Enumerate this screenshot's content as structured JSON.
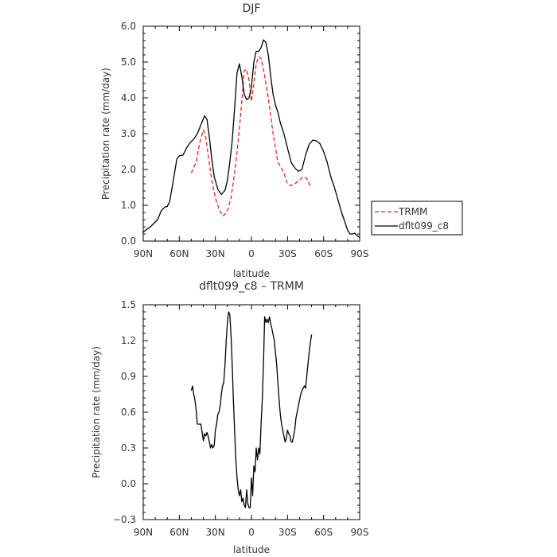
{
  "colors": {
    "trmm": "#e8231e",
    "model": "#000000"
  },
  "chart_data": [
    {
      "type": "line",
      "title": "DJF",
      "xlabel": "latitude",
      "ylabel": "Precipitation rate (mm/day)",
      "xlim": [
        90,
        -90
      ],
      "ylim": [
        0,
        6
      ],
      "xticks": [
        90,
        60,
        30,
        0,
        -30,
        -60,
        -90
      ],
      "xtick_labels": [
        "90N",
        "60N",
        "30N",
        "0",
        "30S",
        "60S",
        "90S"
      ],
      "yticks": [
        0,
        1,
        2,
        3,
        4,
        5,
        6
      ],
      "ytick_labels": [
        "0.0",
        "1.0",
        "2.0",
        "3.0",
        "4.0",
        "5.0",
        "6.0"
      ],
      "grid": false,
      "legend": "right",
      "series": [
        {
          "name": "TRMM",
          "style": "dashed",
          "x": [
            50,
            46,
            43,
            40,
            38,
            36,
            33,
            30,
            27,
            24,
            22,
            20,
            17,
            14,
            11,
            8,
            6,
            4,
            2,
            0,
            -2,
            -4,
            -6,
            -8,
            -10,
            -12,
            -14,
            -16,
            -18,
            -20,
            -22,
            -24,
            -27,
            -30,
            -33,
            -36,
            -40,
            -43,
            -46,
            -48,
            -50
          ],
          "y": [
            1.9,
            2.2,
            2.75,
            3.1,
            2.9,
            2.4,
            1.7,
            1.2,
            0.9,
            0.7,
            0.75,
            0.85,
            1.2,
            1.9,
            2.8,
            3.9,
            4.75,
            4.8,
            4.5,
            3.9,
            4.4,
            4.95,
            5.15,
            5.1,
            4.8,
            4.4,
            4.0,
            3.5,
            3.0,
            2.6,
            2.2,
            2.1,
            1.9,
            1.6,
            1.55,
            1.6,
            1.7,
            1.8,
            1.75,
            1.6,
            1.5
          ]
        },
        {
          "name": "dflt099_c8",
          "style": "solid",
          "x": [
            90,
            87,
            84,
            81,
            78,
            75,
            72,
            70,
            68,
            66,
            64,
            62,
            60,
            57,
            54,
            51,
            48,
            45,
            42,
            39,
            37,
            35,
            33,
            31,
            28,
            25,
            22,
            20,
            18,
            16,
            14,
            12,
            10,
            8,
            6,
            4,
            2,
            0,
            -2,
            -4,
            -6,
            -8,
            -10,
            -12,
            -14,
            -16,
            -18,
            -20,
            -22,
            -24,
            -27,
            -30,
            -33,
            -36,
            -39,
            -42,
            -45,
            -48,
            -51,
            -54,
            -57,
            -60,
            -63,
            -66,
            -69,
            -72,
            -75,
            -78,
            -80,
            -82,
            -84,
            -86,
            -88,
            -90
          ],
          "y": [
            0.25,
            0.33,
            0.4,
            0.5,
            0.6,
            0.85,
            0.95,
            0.97,
            1.1,
            1.5,
            1.9,
            2.3,
            2.38,
            2.4,
            2.6,
            2.75,
            2.85,
            3.0,
            3.25,
            3.5,
            3.4,
            2.9,
            2.3,
            1.8,
            1.45,
            1.3,
            1.42,
            1.7,
            2.2,
            2.8,
            3.7,
            4.7,
            4.95,
            4.6,
            4.1,
            3.95,
            4.0,
            4.3,
            5.0,
            5.3,
            5.3,
            5.4,
            5.62,
            5.55,
            5.2,
            4.6,
            4.1,
            3.8,
            3.6,
            3.3,
            3.0,
            2.6,
            2.2,
            2.05,
            1.95,
            2.0,
            2.4,
            2.7,
            2.82,
            2.8,
            2.72,
            2.5,
            2.2,
            1.8,
            1.5,
            1.15,
            0.8,
            0.5,
            0.3,
            0.2,
            0.2,
            0.22,
            0.15,
            0.1
          ]
        }
      ]
    },
    {
      "type": "line",
      "title": "dflt099_c8 – TRMM",
      "xlabel": "latitude",
      "ylabel": "Precipitation rate (mm/day)",
      "xlim": [
        90,
        -90
      ],
      "ylim": [
        -0.3,
        1.5
      ],
      "xticks": [
        90,
        60,
        30,
        0,
        -30,
        -60,
        -90
      ],
      "xtick_labels": [
        "90N",
        "60N",
        "30N",
        "0",
        "30S",
        "60S",
        "90S"
      ],
      "yticks": [
        -0.3,
        0,
        0.3,
        0.6,
        0.9,
        1.2,
        1.5
      ],
      "ytick_labels": [
        "−0.3",
        "0.0",
        "0.3",
        "0.6",
        "0.9",
        "1.2",
        "1.5"
      ],
      "grid": false,
      "series": [
        {
          "style": "solid",
          "x": [
            50,
            49,
            48,
            47,
            46,
            45,
            44,
            42,
            40,
            39,
            38,
            37,
            36,
            35,
            34,
            33,
            32,
            31,
            30,
            29,
            28,
            27,
            26,
            25,
            24,
            23,
            22,
            21,
            20,
            19,
            18,
            17,
            16,
            15,
            14,
            13,
            12,
            11,
            10,
            9,
            8,
            7,
            6,
            5,
            4,
            3,
            2,
            1,
            0,
            -1,
            -2,
            -3,
            -4,
            -5,
            -6,
            -7,
            -8,
            -9,
            -10,
            -11,
            -12,
            -13,
            -14,
            -15,
            -16,
            -17,
            -18,
            -19,
            -20,
            -21,
            -22,
            -23,
            -24,
            -25,
            -26,
            -27,
            -28,
            -29,
            -30,
            -31,
            -32,
            -33,
            -34,
            -35,
            -36,
            -37,
            -38,
            -39,
            -40,
            -41,
            -42,
            -43,
            -44,
            -45,
            -46,
            -47,
            -48,
            -49,
            -50
          ],
          "y": [
            0.78,
            0.82,
            0.75,
            0.7,
            0.62,
            0.5,
            0.5,
            0.5,
            0.36,
            0.42,
            0.4,
            0.43,
            0.4,
            0.35,
            0.3,
            0.33,
            0.3,
            0.32,
            0.45,
            0.5,
            0.58,
            0.6,
            0.65,
            0.75,
            0.82,
            0.85,
            1.0,
            1.2,
            1.35,
            1.44,
            1.42,
            1.25,
            1.0,
            0.7,
            0.45,
            0.2,
            0.05,
            -0.05,
            -0.1,
            -0.05,
            -0.15,
            -0.12,
            -0.18,
            -0.2,
            -0.05,
            -0.17,
            -0.2,
            -0.2,
            0.05,
            -0.1,
            0.15,
            0.1,
            0.3,
            0.2,
            0.3,
            0.25,
            0.5,
            0.7,
            1.0,
            1.4,
            1.35,
            1.38,
            1.35,
            1.4,
            1.34,
            1.3,
            1.25,
            1.2,
            1.1,
            1.0,
            0.85,
            0.7,
            0.58,
            0.5,
            0.45,
            0.4,
            0.35,
            0.38,
            0.45,
            0.42,
            0.4,
            0.35,
            0.35,
            0.4,
            0.45,
            0.55,
            0.6,
            0.65,
            0.7,
            0.75,
            0.78,
            0.8,
            0.82,
            0.8,
            0.9,
            1.0,
            1.1,
            1.18,
            1.25
          ]
        }
      ]
    }
  ]
}
